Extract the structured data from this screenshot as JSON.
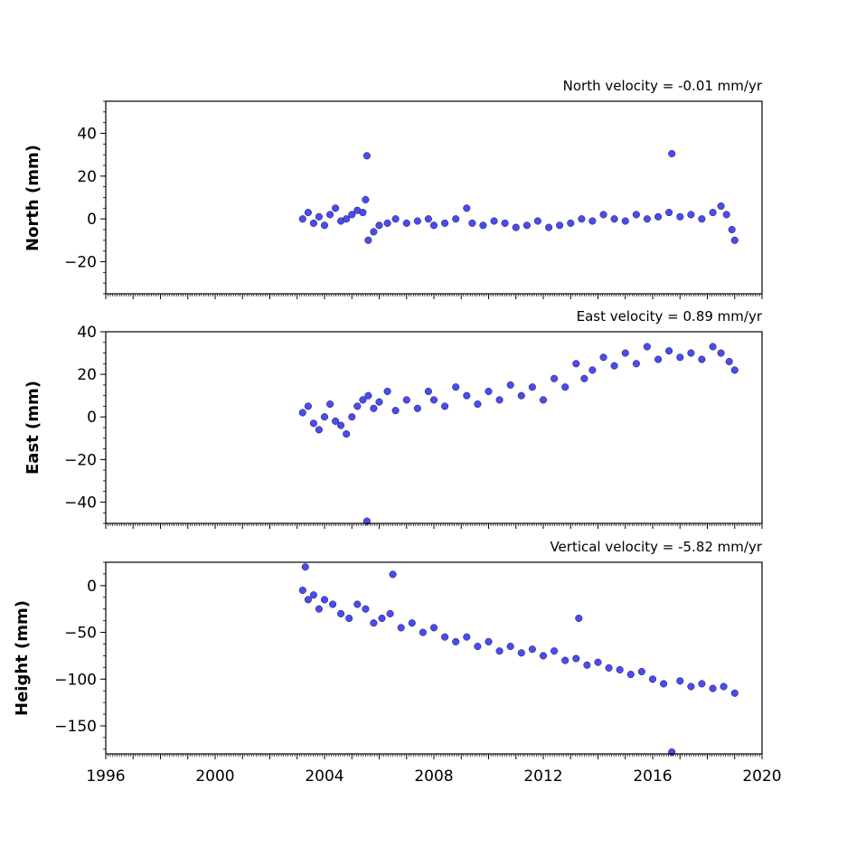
{
  "chart_data": [
    {
      "type": "scatter",
      "title": "North velocity = -0.01 mm/yr",
      "ylabel": "North (mm)",
      "xlim": [
        1996,
        2020
      ],
      "ylim": [
        -35,
        55
      ],
      "yticks": [
        -20,
        0,
        20,
        40
      ],
      "xticks": [],
      "color": "#4b4bf2",
      "series": [
        {
          "x": [
            2003.2,
            2003.4,
            2003.6,
            2003.8,
            2004.0,
            2004.2,
            2004.4,
            2004.6,
            2004.8,
            2005.0,
            2005.2,
            2005.4,
            2005.5,
            2005.55,
            2005.6,
            2005.8,
            2006.0,
            2006.3,
            2006.6,
            2007.0,
            2007.4,
            2007.8,
            2008.0,
            2008.4,
            2008.8,
            2009.2,
            2009.4,
            2009.8,
            2010.2,
            2010.6,
            2011.0,
            2011.4,
            2011.8,
            2012.2,
            2012.6,
            2013.0,
            2013.4,
            2013.8,
            2014.2,
            2014.6,
            2015.0,
            2015.4,
            2015.8,
            2016.2,
            2016.6,
            2016.7,
            2017.0,
            2017.4,
            2017.8,
            2018.2,
            2018.5,
            2018.7,
            2018.9,
            2019.0
          ],
          "y": [
            0,
            3,
            -2,
            1,
            -3,
            2,
            5,
            -1,
            0,
            2,
            4,
            3,
            9,
            29.5,
            -10,
            -6,
            -3,
            -2,
            0,
            -2,
            -1,
            0,
            -3,
            -2,
            0,
            5,
            -2,
            -3,
            -1,
            -2,
            -4,
            -3,
            -1,
            -4,
            -3,
            -2,
            0,
            -1,
            2,
            0,
            -1,
            2,
            0,
            1,
            3,
            30.5,
            1,
            2,
            0,
            3,
            6,
            2,
            -5,
            -10
          ]
        }
      ]
    },
    {
      "type": "scatter",
      "title": "East velocity = 0.89 mm/yr",
      "ylabel": "East (mm)",
      "xlim": [
        1996,
        2020
      ],
      "ylim": [
        -50,
        40
      ],
      "yticks": [
        -40,
        -20,
        0,
        20,
        40
      ],
      "xticks": [],
      "color": "#4b4bf2",
      "series": [
        {
          "x": [
            2003.2,
            2003.4,
            2003.6,
            2003.8,
            2004.0,
            2004.2,
            2004.4,
            2004.6,
            2004.8,
            2005.0,
            2005.2,
            2005.4,
            2005.55,
            2005.6,
            2005.8,
            2006.0,
            2006.3,
            2006.6,
            2007.0,
            2007.4,
            2007.8,
            2008.0,
            2008.4,
            2008.8,
            2009.2,
            2009.6,
            2010.0,
            2010.4,
            2010.8,
            2011.2,
            2011.6,
            2012.0,
            2012.4,
            2012.8,
            2013.2,
            2013.5,
            2013.8,
            2014.2,
            2014.6,
            2015.0,
            2015.4,
            2015.8,
            2016.2,
            2016.6,
            2017.0,
            2017.4,
            2017.8,
            2018.2,
            2018.5,
            2018.8,
            2019.0
          ],
          "y": [
            2,
            5,
            -3,
            -6,
            0,
            6,
            -2,
            -4,
            -8,
            0,
            5,
            8,
            -49,
            10,
            4,
            7,
            12,
            3,
            8,
            4,
            12,
            8,
            5,
            14,
            10,
            6,
            12,
            8,
            15,
            10,
            14,
            8,
            18,
            14,
            25,
            18,
            22,
            28,
            24,
            30,
            25,
            33,
            27,
            31,
            28,
            30,
            27,
            33,
            30,
            26,
            22
          ]
        }
      ]
    },
    {
      "type": "scatter",
      "title": "Vertical velocity = -5.82 mm/yr",
      "ylabel": "Height (mm)",
      "xlim": [
        1996,
        2020
      ],
      "ylim": [
        -180,
        25
      ],
      "yticks": [
        -150,
        -100,
        -50,
        0
      ],
      "xticks": [
        1996,
        2000,
        2004,
        2008,
        2012,
        2016,
        2020
      ],
      "color": "#4b4bf2",
      "series": [
        {
          "x": [
            2003.2,
            2003.3,
            2003.4,
            2003.6,
            2003.8,
            2004.0,
            2004.3,
            2004.6,
            2004.9,
            2005.2,
            2005.5,
            2005.8,
            2006.1,
            2006.4,
            2006.5,
            2006.8,
            2007.2,
            2007.6,
            2008.0,
            2008.4,
            2008.8,
            2009.2,
            2009.6,
            2010.0,
            2010.4,
            2010.8,
            2011.2,
            2011.6,
            2012.0,
            2012.4,
            2012.8,
            2013.2,
            2013.3,
            2013.6,
            2014.0,
            2014.4,
            2014.8,
            2015.2,
            2015.6,
            2016.0,
            2016.4,
            2016.7,
            2017.0,
            2017.4,
            2017.8,
            2018.2,
            2018.6,
            2019.0
          ],
          "y": [
            -5,
            20,
            -15,
            -10,
            -25,
            -15,
            -20,
            -30,
            -35,
            -20,
            -25,
            -40,
            -35,
            -30,
            12,
            -45,
            -40,
            -50,
            -45,
            -55,
            -60,
            -55,
            -65,
            -60,
            -70,
            -65,
            -72,
            -68,
            -75,
            -70,
            -80,
            -78,
            -35,
            -85,
            -82,
            -88,
            -90,
            -95,
            -92,
            -100,
            -105,
            -178,
            -102,
            -108,
            -105,
            -110,
            -108,
            -115
          ]
        }
      ]
    }
  ]
}
